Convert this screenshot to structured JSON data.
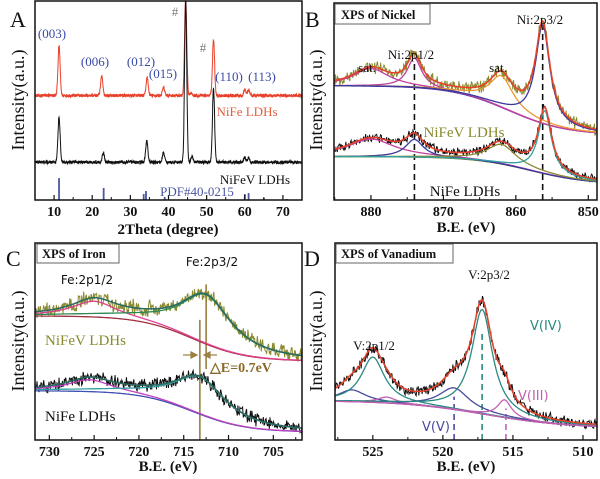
{
  "chart_data": [
    {
      "type": "line",
      "panel_label": "A",
      "title": "",
      "xlabel": "2Theta (degree)",
      "ylabel": "Intensity(a.u.)",
      "xlim": [
        5,
        75
      ],
      "ylim": [
        0,
        100
      ],
      "xticks": [
        10,
        20,
        30,
        40,
        50,
        60,
        70
      ],
      "grid": false,
      "series": [
        {
          "name": "NiFe LDHs",
          "color": "#e8402a",
          "baseline": 52.5,
          "peaks": [
            [
              11.3,
              25
            ],
            [
              22.5,
              10
            ],
            [
              34.4,
              9
            ],
            [
              38.7,
              4
            ],
            [
              44.5,
              49
            ],
            [
              46.0,
              1.5
            ],
            [
              51.8,
              28
            ],
            [
              60.0,
              3
            ],
            [
              61.0,
              3
            ]
          ]
        },
        {
          "name": "NiFeV LDHs",
          "color": "#111111",
          "baseline": 19,
          "peaks": [
            [
              11.3,
              23
            ],
            [
              22.9,
              5
            ],
            [
              34.3,
              11
            ],
            [
              38.7,
              5
            ],
            [
              44.5,
              82
            ],
            [
              46.2,
              3
            ],
            [
              51.8,
              37
            ],
            [
              60.0,
              2.5
            ],
            [
              61.0,
              2
            ]
          ]
        }
      ],
      "reference": {
        "name": "PDF#40-0215",
        "color": "#4a55a0",
        "sticks": [
          [
            11.3,
            11
          ],
          [
            23.0,
            6
          ],
          [
            33.5,
            3
          ],
          [
            34.1,
            4.5
          ],
          [
            39.0,
            1.5
          ],
          [
            60.0,
            3
          ],
          [
            61.0,
            3.5
          ],
          [
            65.0,
            1
          ],
          [
            71.0,
            0.5
          ]
        ]
      },
      "annotations": [
        "(003)",
        "(006)",
        "(012)",
        "(015)",
        "(110)",
        "(113)",
        "#",
        "#"
      ],
      "annotation_color": "#3a4aa8"
    },
    {
      "type": "line",
      "panel_label": "B",
      "title": "XPS of Nickel",
      "xlabel": "B.E. (eV)",
      "ylabel": "Intensity(a.u.)",
      "xlim": [
        885.1,
        848.8
      ],
      "ylim": [
        0,
        100
      ],
      "xticks": [
        880,
        870,
        860,
        850
      ],
      "grid": false,
      "fit_color": "#e8402a",
      "series": [
        {
          "name": "NiFeV LDHs",
          "color": "#8a8a30",
          "background": {
            "left": 58,
            "right": 33,
            "center": 861,
            "width": 4,
            "color": "#5a3aa0"
          },
          "peaks": [
            {
              "center": 880,
              "height": 9,
              "width": 3,
              "color": "#c040a0"
            },
            {
              "center": 874,
              "height": 15,
              "width": 1.2,
              "color": "#c040a0"
            },
            {
              "center": 862,
              "height": 16,
              "width": 2,
              "color": "#e89a30"
            },
            {
              "center": 856.3,
              "height": 50,
              "width": 1.2,
              "color": "#3a3aa0"
            }
          ]
        },
        {
          "name": "NiFe LDHs",
          "color": "#111111",
          "background": {
            "left": 22,
            "right": 8,
            "center": 858,
            "width": 4,
            "color": "#7a8a40"
          },
          "peaks": [
            {
              "center": 880,
              "height": 9,
              "width": 4,
              "color": "#c040a0"
            },
            {
              "center": 874,
              "height": 9,
              "width": 1.5,
              "color": "#3a3aa0"
            },
            {
              "center": 862,
              "height": 10,
              "width": 2.5,
              "color": "#8a8a30"
            },
            {
              "center": 856,
              "height": 32,
              "width": 1.1,
              "color": "#30a0a0"
            }
          ]
        }
      ],
      "reference_lines": [
        {
          "x": 874,
          "ymin": 0,
          "ymax": 70,
          "color": "#111111"
        },
        {
          "x": 856.3,
          "ymin": 0,
          "ymax": 88,
          "color": "#111111"
        }
      ],
      "annotations": [
        "sat.",
        "Ni:2p1/2",
        "sat.",
        "Ni:2p3/2"
      ],
      "annotation_color": "#111111"
    },
    {
      "type": "line",
      "panel_label": "C",
      "title": "XPS of Iron",
      "xlabel": "B.E. (eV)",
      "ylabel": "Intensity(a.u.)",
      "xlim": [
        731.6,
        701.8
      ],
      "ylim": [
        0,
        100
      ],
      "xticks": [
        730,
        725,
        720,
        715,
        710,
        705
      ],
      "grid": false,
      "fit_color": "#2a6a60",
      "series": [
        {
          "name": "NiFeV LDHs",
          "color": "#8a8a30",
          "background": {
            "left": 63,
            "right": 40,
            "center": 714,
            "width": 3,
            "color": "#a03040"
          },
          "peaks": [
            {
              "center": 725,
              "height": 8,
              "width": 3,
              "color": "#e04090"
            },
            {
              "center": 712.5,
              "height": 25,
              "width": 3.5,
              "color": "#2a8a50"
            }
          ]
        },
        {
          "name": "NiFe LDHs",
          "color": "#111111",
          "background": {
            "left": 25,
            "right": 4,
            "center": 714,
            "width": 3,
            "color": "#4050b0"
          },
          "peaks": [
            {
              "center": 725.5,
              "height": 6,
              "width": 3,
              "color": "#c040c0"
            },
            {
              "center": 713.2,
              "height": 19,
              "width": 3.5,
              "color": "#30a0a0"
            }
          ]
        }
      ],
      "reference_lines": [
        {
          "x": 713.2,
          "ymin": -3,
          "ymax": 61,
          "color": "#9a8040"
        },
        {
          "x": 712.5,
          "ymin": 36,
          "ymax": 79,
          "color": "#9a8040"
        }
      ],
      "annotations": [
        "Fe:2p1/2",
        "Fe:2p3/2",
        "△E=0.7eV"
      ],
      "annotation_color": "#8b6b2a"
    },
    {
      "type": "line",
      "panel_label": "D",
      "title": "XPS of Vanadium",
      "xlabel": "B.E. (eV)",
      "ylabel": "Intensity(a.u.)",
      "xlim": [
        527.7,
        509
      ],
      "ylim": [
        0,
        100
      ],
      "xticks": [
        525,
        520,
        515,
        510
      ],
      "grid": false,
      "fit_color": "#e8402a",
      "series": [
        {
          "name": "",
          "color": "#111111",
          "background": {
            "left": 20,
            "right": 6,
            "center": 517,
            "width": 3,
            "color": "#a040b0"
          },
          "peaks": [
            {
              "center": 526.5,
              "height": 6,
              "width": 1.2,
              "color": "#4a4aa0"
            },
            {
              "center": 525,
              "height": 23,
              "width": 1.0,
              "color": "#2a8a80"
            },
            {
              "center": 524,
              "height": 3,
              "width": 0.8,
              "color": "#c060b0"
            },
            {
              "center": 519.2,
              "height": 11,
              "width": 1.3,
              "color": "#4a4aa0"
            },
            {
              "center": 517.2,
              "height": 53,
              "width": 0.9,
              "color": "#2a8a80"
            },
            {
              "center": 515.6,
              "height": 9,
              "width": 0.6,
              "color": "#c060b0"
            }
          ]
        }
      ],
      "reference_lines": [
        {
          "x": 519.2,
          "ymin": 0,
          "ymax": 22,
          "color": "#4a4aa0"
        },
        {
          "x": 517.2,
          "ymin": 0,
          "ymax": 54,
          "color": "#2a8a80"
        },
        {
          "x": 515.5,
          "ymin": 0,
          "ymax": 16,
          "color": "#c060b0"
        }
      ],
      "annotations": [
        "V:2p1/2",
        "V:2p3/2",
        "V(IV)",
        "V(III)",
        "V(V)"
      ],
      "annotation_colors": [
        "#111111",
        "#111111",
        "#2a8a80",
        "#c060b0",
        "#4a4aa0"
      ]
    }
  ]
}
